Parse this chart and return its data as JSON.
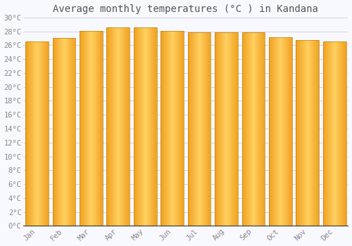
{
  "title": "Average monthly temperatures (°C ) in Kandana",
  "months": [
    "Jan",
    "Feb",
    "Mar",
    "Apr",
    "May",
    "Jun",
    "Jul",
    "Aug",
    "Sep",
    "Oct",
    "Nov",
    "Dec"
  ],
  "values": [
    26.5,
    27.1,
    28.1,
    28.6,
    28.6,
    28.1,
    27.9,
    27.9,
    27.9,
    27.2,
    26.7,
    26.5
  ],
  "bar_color_center": "#FFD060",
  "bar_color_edge": "#F0A020",
  "bar_border_color": "#B8860B",
  "background_color": "#F8F8FF",
  "grid_color": "#CCCCDD",
  "text_color": "#888888",
  "title_color": "#555555",
  "axis_color": "#333333",
  "ylim": [
    0,
    30
  ],
  "yticks": [
    0,
    2,
    4,
    6,
    8,
    10,
    12,
    14,
    16,
    18,
    20,
    22,
    24,
    26,
    28,
    30
  ],
  "title_fontsize": 10,
  "tick_fontsize": 7.5,
  "font_family": "monospace",
  "bar_width": 0.85
}
